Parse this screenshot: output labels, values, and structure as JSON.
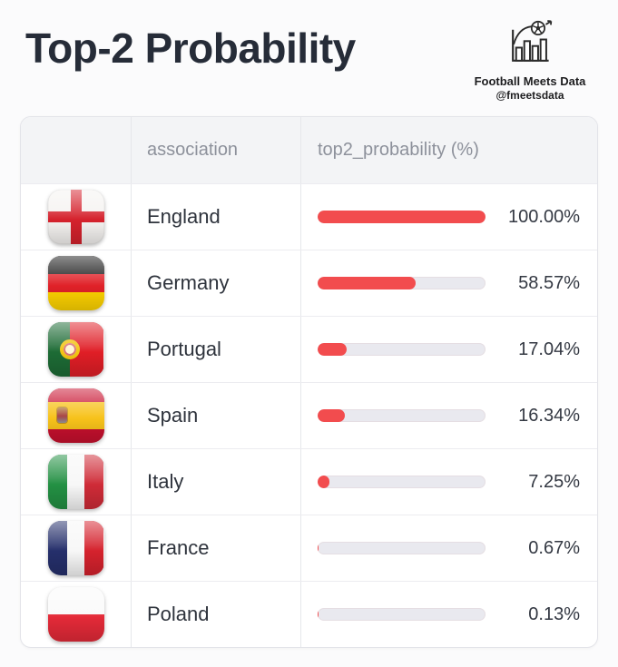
{
  "title": "Top-2 Probability",
  "brand": {
    "name": "Football Meets Data",
    "handle": "@fmeetsdata",
    "logo_icon": "bar-chart-with-football-icon"
  },
  "table": {
    "columns": [
      "",
      "association",
      "top2_probability (%)"
    ],
    "rows": [
      {
        "association": "England",
        "flag_icon": "england-flag-icon",
        "value": 100.0,
        "display": "100.00%"
      },
      {
        "association": "Germany",
        "flag_icon": "germany-flag-icon",
        "value": 58.57,
        "display": "58.57%"
      },
      {
        "association": "Portugal",
        "flag_icon": "portugal-flag-icon",
        "value": 17.04,
        "display": "17.04%"
      },
      {
        "association": "Spain",
        "flag_icon": "spain-flag-icon",
        "value": 16.34,
        "display": "16.34%"
      },
      {
        "association": "Italy",
        "flag_icon": "italy-flag-icon",
        "value": 7.25,
        "display": "7.25%"
      },
      {
        "association": "France",
        "flag_icon": "france-flag-icon",
        "value": 0.67,
        "display": "0.67%"
      },
      {
        "association": "Poland",
        "flag_icon": "poland-flag-icon",
        "value": 0.13,
        "display": "0.13%"
      }
    ]
  },
  "colors": {
    "background": "#fbfbfc",
    "title_text": "#262c38",
    "header_bg": "#f3f4f6",
    "header_text": "#8d919b",
    "row_text": "#2e333c",
    "value_text": "#343943",
    "table_border": "#e3e4e9",
    "bar_fill": "#f24c4e",
    "bar_track": "#e9e9ef"
  },
  "chart_data": {
    "type": "bar",
    "orientation": "horizontal",
    "title": "Top-2 Probability",
    "xlabel": "association",
    "ylabel": "top2_probability (%)",
    "categories": [
      "England",
      "Germany",
      "Portugal",
      "Spain",
      "Italy",
      "France",
      "Poland"
    ],
    "values": [
      100.0,
      58.57,
      17.04,
      16.34,
      7.25,
      0.67,
      0.13
    ],
    "value_labels": [
      "100.00%",
      "58.57%",
      "17.04%",
      "16.34%",
      "7.25%",
      "0.67%",
      "0.13%"
    ],
    "xlim": [
      0,
      100
    ],
    "grid": false,
    "legend": false
  }
}
